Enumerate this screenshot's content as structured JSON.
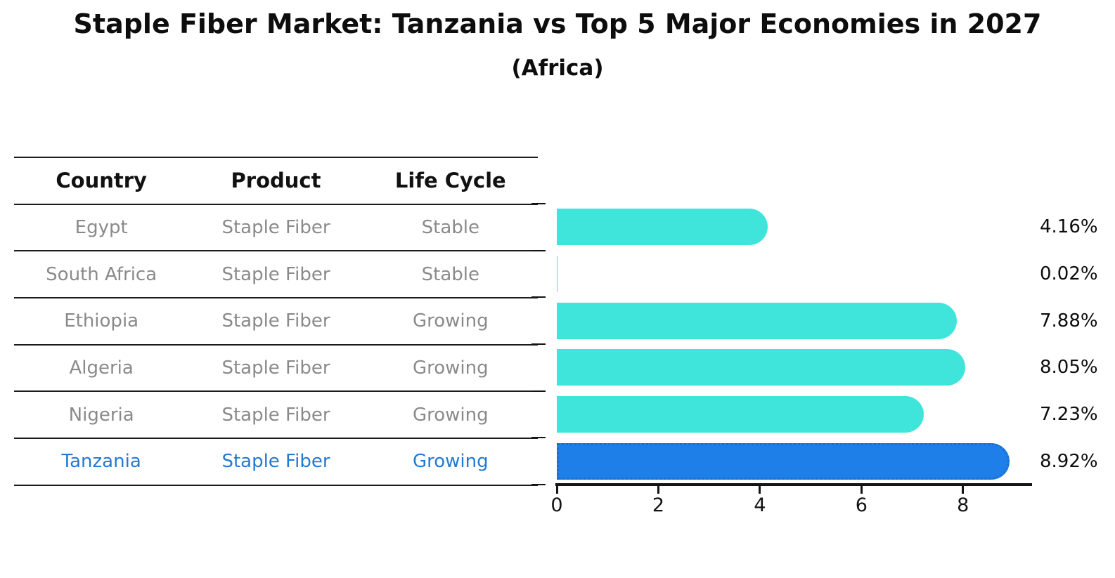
{
  "title": "Staple Fiber Market: Tanzania vs Top 5 Major Economies in 2027",
  "subtitle": "(Africa)",
  "table": {
    "headers": [
      "Country",
      "Product",
      "Life Cycle"
    ],
    "rows": [
      {
        "country": "Egypt",
        "product": "Staple Fiber",
        "life_cycle": "Stable"
      },
      {
        "country": "South Africa",
        "product": "Staple Fiber",
        "life_cycle": "Stable"
      },
      {
        "country": "Ethiopia",
        "product": "Staple Fiber",
        "life_cycle": "Growing"
      },
      {
        "country": "Algeria",
        "product": "Staple Fiber",
        "life_cycle": "Growing"
      },
      {
        "country": "Nigeria",
        "product": "Staple Fiber",
        "life_cycle": "Growing"
      },
      {
        "country": "Tanzania",
        "product": "Staple Fiber",
        "life_cycle": "Growing"
      }
    ],
    "highlight_row": 5
  },
  "chart_data": {
    "type": "bar",
    "orientation": "horizontal",
    "title": "Staple Fiber Market: Tanzania vs Top 5 Major Economies in 2027",
    "subtitle": "(Africa)",
    "categories": [
      "Egypt",
      "South Africa",
      "Ethiopia",
      "Algeria",
      "Nigeria",
      "Tanzania"
    ],
    "values": [
      4.16,
      0.02,
      7.88,
      8.05,
      7.23,
      8.92
    ],
    "value_labels": [
      "4.16%",
      "0.02%",
      "7.88%",
      "8.05%",
      "7.23%",
      "8.92%"
    ],
    "xlim": [
      0,
      9.36
    ],
    "xticks": [
      0,
      2,
      4,
      6,
      8
    ],
    "xtick_labels": [
      "0",
      "2",
      "4",
      "6",
      "8"
    ],
    "grid": false,
    "legend": "none",
    "highlight_index": 5
  },
  "colors": {
    "bar": "#3FE5DB",
    "highlight_bar": "#1E7FE9",
    "highlight_border": "#1A6ED0",
    "highlight_text": "#2479D2",
    "table_text": "#8A8A8A",
    "axis": "#141414"
  }
}
